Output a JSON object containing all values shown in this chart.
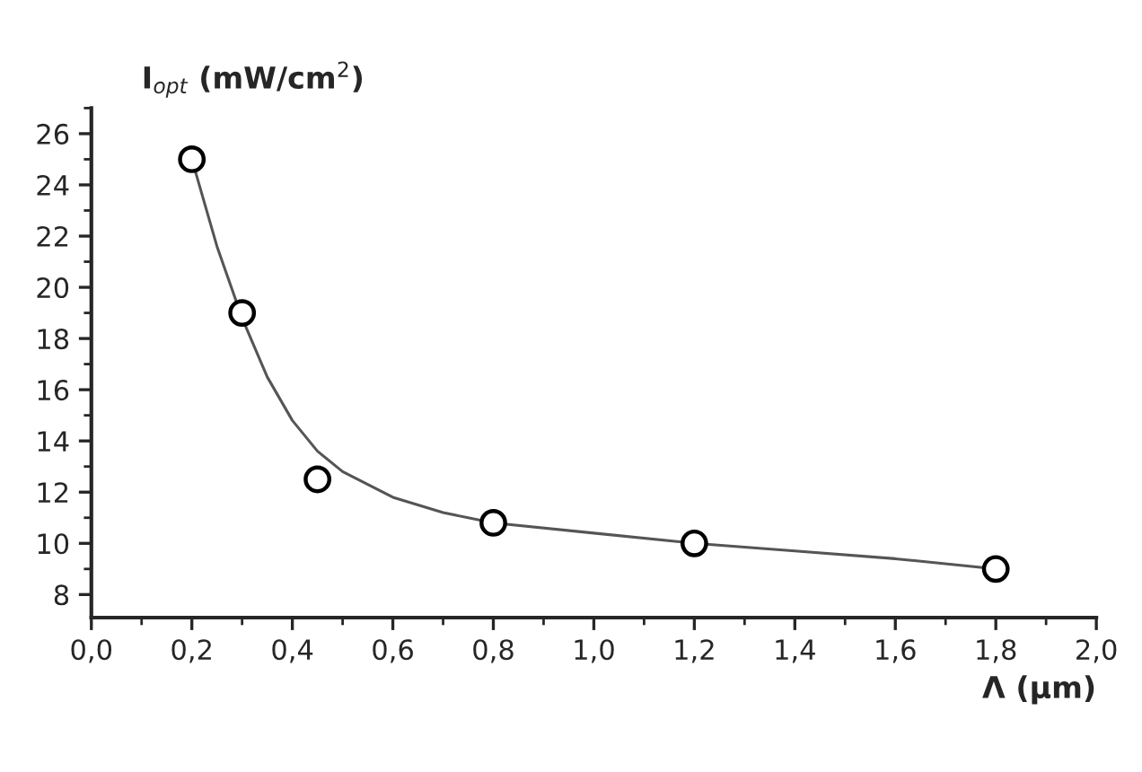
{
  "chart_data": {
    "type": "scatter",
    "xlabel": "Λ (μm)",
    "ylabel": "I$_{opt}$ (mW/cm$^{2}$)",
    "xlim": [
      0,
      2.0
    ],
    "ylim": [
      7.1,
      27
    ],
    "xticks": [
      {
        "value": 0,
        "label": "0,0"
      },
      {
        "value": 0.2,
        "label": "0,2"
      },
      {
        "value": 0.4,
        "label": "0,4"
      },
      {
        "value": 0.6,
        "label": "0,6"
      },
      {
        "value": 0.8,
        "label": "0,8"
      },
      {
        "value": 1.0,
        "label": "1,0"
      },
      {
        "value": 1.2,
        "label": "1,2"
      },
      {
        "value": 1.4,
        "label": "1,4"
      },
      {
        "value": 1.6,
        "label": "1,6"
      },
      {
        "value": 1.8,
        "label": "1,8"
      },
      {
        "value": 2.0,
        "label": "2,0"
      }
    ],
    "yticks": [
      8,
      10,
      12,
      14,
      16,
      18,
      20,
      22,
      24,
      26
    ],
    "grid": false,
    "marker": "circle",
    "series": [
      {
        "color": "#000000",
        "x": [
          0.2,
          0.3,
          0.45,
          0.8,
          1.2,
          1.8
        ],
        "values": [
          25,
          19,
          12.5,
          10.8,
          10,
          9
        ]
      },
      {
        "type": "line",
        "color": "#555555",
        "marker": "none",
        "line_style": "solid",
        "x": [
          0.2,
          0.25,
          0.3,
          0.35,
          0.4,
          0.45,
          0.5,
          0.6,
          0.7,
          0.8,
          1.0,
          1.2,
          1.4,
          1.6,
          1.8
        ],
        "values": [
          25,
          21.6,
          18.8,
          16.5,
          14.8,
          13.6,
          12.8,
          11.8,
          11.2,
          10.8,
          10.4,
          10.0,
          9.7,
          9.4,
          9.0
        ]
      }
    ]
  }
}
